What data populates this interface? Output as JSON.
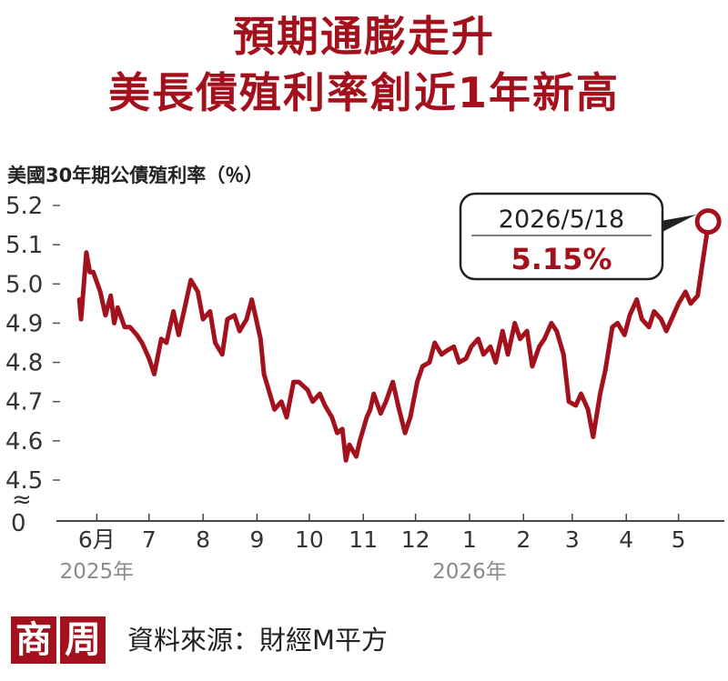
{
  "title_line1": "預期通膨走升",
  "title_line2": "美長債殖利率創近1年新高",
  "logo_chars": [
    "商",
    "周"
  ],
  "source": "資料來源：財經M平方",
  "chart_data": {
    "type": "line",
    "title": "預期通膨走升 美長債殖利率創近1年新高",
    "ylabel": "美國30年期公債殖利率（％）",
    "ylim": [
      4.5,
      5.2
    ],
    "yticks": [
      "5.2",
      "5.1",
      "5.0",
      "4.9",
      "4.8",
      "4.7",
      "4.6",
      "4.5"
    ],
    "y_zero_label": "0",
    "axis_break_symbol": "≈",
    "x_tick_labels": [
      {
        "date": "2025-06-01",
        "label": "6月"
      },
      {
        "date": "2025-07-01",
        "label": "7"
      },
      {
        "date": "2025-08-01",
        "label": "8"
      },
      {
        "date": "2025-09-01",
        "label": "9"
      },
      {
        "date": "2025-10-01",
        "label": "10"
      },
      {
        "date": "2025-11-01",
        "label": "11"
      },
      {
        "date": "2025-12-01",
        "label": "12"
      },
      {
        "date": "2026-01-01",
        "label": "1"
      },
      {
        "date": "2026-02-01",
        "label": "2"
      },
      {
        "date": "2026-03-01",
        "label": "3"
      },
      {
        "date": "2026-04-01",
        "label": "4"
      },
      {
        "date": "2026-05-01",
        "label": "5"
      }
    ],
    "year_labels": [
      {
        "date": "2025-06-01",
        "label": "2025年"
      },
      {
        "date": "2026-01-01",
        "label": "2026年"
      }
    ],
    "line_color": "#a3111d",
    "callout": {
      "date": "2026/5/18",
      "value": "5.15%"
    },
    "series": [
      {
        "x": [
          "2025-05-22",
          "2025-05-23",
          "2025-05-26",
          "2025-05-28",
          "2025-05-30",
          "2025-06-03",
          "2025-06-06",
          "2025-06-09",
          "2025-06-11",
          "2025-06-13",
          "2025-06-17",
          "2025-06-20",
          "2025-06-24",
          "2025-06-27",
          "2025-07-01",
          "2025-07-04",
          "2025-07-08",
          "2025-07-11",
          "2025-07-15",
          "2025-07-18",
          "2025-07-22",
          "2025-07-25",
          "2025-07-29",
          "2025-08-01",
          "2025-08-05",
          "2025-08-08",
          "2025-08-12",
          "2025-08-15",
          "2025-08-19",
          "2025-08-22",
          "2025-08-26",
          "2025-08-29",
          "2025-09-03",
          "2025-09-05",
          "2025-09-09",
          "2025-09-11",
          "2025-09-15",
          "2025-09-18",
          "2025-09-22",
          "2025-09-25",
          "2025-09-30",
          "2025-10-03",
          "2025-10-07",
          "2025-10-10",
          "2025-10-14",
          "2025-10-17",
          "2025-10-20",
          "2025-10-22",
          "2025-10-24",
          "2025-10-28",
          "2025-10-30",
          "2025-11-03",
          "2025-11-05",
          "2025-11-07",
          "2025-11-11",
          "2025-11-14",
          "2025-11-18",
          "2025-11-21",
          "2025-11-25",
          "2025-11-28",
          "2025-12-02",
          "2025-12-05",
          "2025-12-09",
          "2025-12-12",
          "2025-12-16",
          "2025-12-19",
          "2025-12-23",
          "2025-12-26",
          "2025-12-30",
          "2026-01-02",
          "2026-01-06",
          "2026-01-09",
          "2026-01-13",
          "2026-01-16",
          "2026-01-20",
          "2026-01-23",
          "2026-01-27",
          "2026-01-30",
          "2026-02-03",
          "2026-02-06",
          "2026-02-10",
          "2026-02-13",
          "2026-02-17",
          "2026-02-20",
          "2026-02-24",
          "2026-02-27",
          "2026-03-03",
          "2026-03-06",
          "2026-03-10",
          "2026-03-13",
          "2026-03-17",
          "2026-03-20",
          "2026-03-24",
          "2026-03-27",
          "2026-03-31",
          "2026-04-03",
          "2026-04-07",
          "2026-04-10",
          "2026-04-14",
          "2026-04-17",
          "2026-04-21",
          "2026-04-24",
          "2026-04-28",
          "2026-05-01",
          "2026-05-05",
          "2026-05-08",
          "2026-05-12",
          "2026-05-14",
          "2026-05-18"
        ],
        "y": [
          4.96,
          4.91,
          5.08,
          5.03,
          5.03,
          4.98,
          4.92,
          4.97,
          4.9,
          4.94,
          4.89,
          4.89,
          4.87,
          4.85,
          4.81,
          4.77,
          4.86,
          4.85,
          4.93,
          4.87,
          4.95,
          5.01,
          4.98,
          4.91,
          4.93,
          4.85,
          4.82,
          4.91,
          4.92,
          4.88,
          4.91,
          4.96,
          4.86,
          4.77,
          4.71,
          4.68,
          4.7,
          4.66,
          4.75,
          4.75,
          4.73,
          4.7,
          4.72,
          4.69,
          4.66,
          4.62,
          4.63,
          4.55,
          4.59,
          4.56,
          4.6,
          4.66,
          4.68,
          4.72,
          4.67,
          4.7,
          4.75,
          4.69,
          4.62,
          4.66,
          4.75,
          4.79,
          4.8,
          4.85,
          4.82,
          4.83,
          4.84,
          4.8,
          4.81,
          4.84,
          4.86,
          4.82,
          4.84,
          4.8,
          4.88,
          4.82,
          4.9,
          4.86,
          4.88,
          4.79,
          4.84,
          4.86,
          4.9,
          4.88,
          4.82,
          4.7,
          4.69,
          4.72,
          4.68,
          4.61,
          4.72,
          4.78,
          4.89,
          4.9,
          4.87,
          4.92,
          4.96,
          4.91,
          4.89,
          4.93,
          4.91,
          4.88,
          4.92,
          4.95,
          4.98,
          4.95,
          4.97,
          5.03,
          5.15
        ]
      }
    ]
  }
}
